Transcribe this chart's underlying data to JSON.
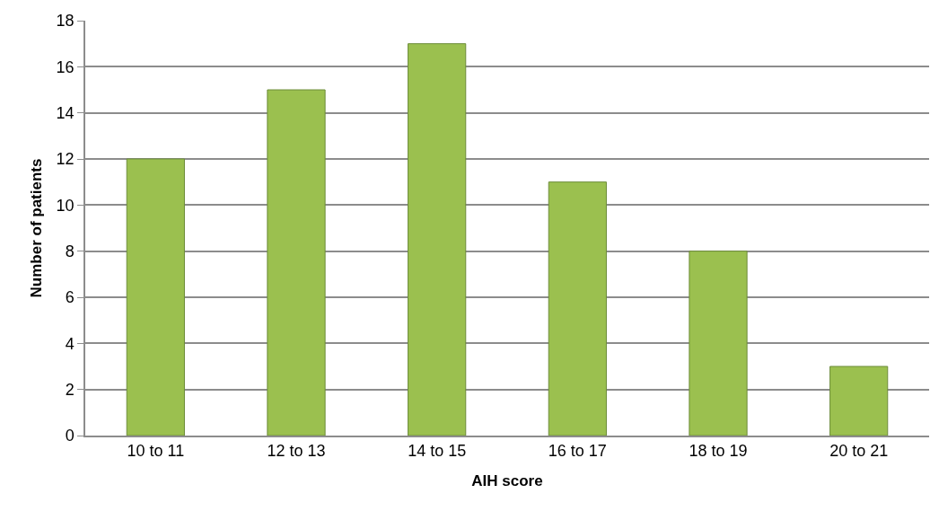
{
  "chart_data": {
    "type": "bar",
    "xlabel": "AIH score",
    "ylabel": "Number of patients",
    "categories": [
      "10 to 11",
      "12 to 13",
      "14 to 15",
      "16 to 17",
      "18 to 19",
      "20 to 21"
    ],
    "values": [
      12,
      15,
      17,
      11,
      8,
      3
    ],
    "color": "#9bc04f",
    "ylim": [
      0,
      18
    ],
    "yticks": [
      0,
      2,
      4,
      6,
      8,
      10,
      12,
      14,
      16,
      18
    ],
    "grid": "y"
  }
}
